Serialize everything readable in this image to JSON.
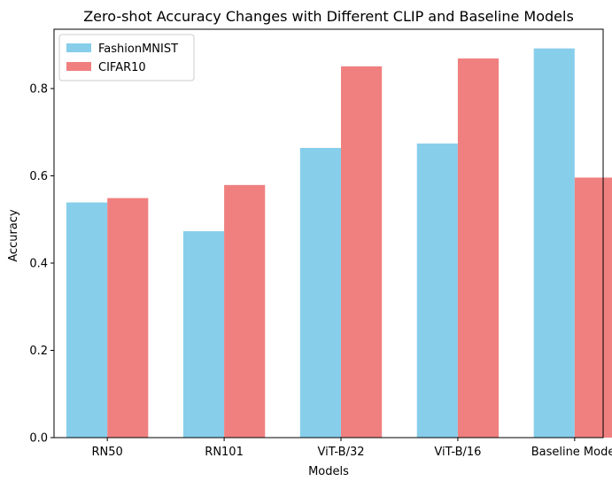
{
  "chart_data": {
    "type": "bar",
    "title": "Zero-shot Accuracy Changes with Different CLIP and Baseline Models",
    "xlabel": "Models",
    "ylabel": "Accuracy",
    "categories": [
      "RN50",
      "RN101",
      "ViT-B/32",
      "ViT-B/16",
      "Baseline Model"
    ],
    "series": [
      {
        "name": "FashionMNIST",
        "color": "#87CEEB",
        "values": [
          0.539,
          0.473,
          0.664,
          0.674,
          0.892
        ]
      },
      {
        "name": "CIFAR10",
        "color": "#F08080",
        "values": [
          0.549,
          0.579,
          0.851,
          0.869,
          0.596
        ]
      }
    ],
    "ylim": [
      0,
      0.936
    ],
    "yticks": [
      0.0,
      0.2,
      0.4,
      0.6,
      0.8
    ],
    "ytick_labels": [
      "0.0",
      "0.2",
      "0.4",
      "0.6",
      "0.8"
    ],
    "grid": false,
    "legend_position": "top-left"
  }
}
